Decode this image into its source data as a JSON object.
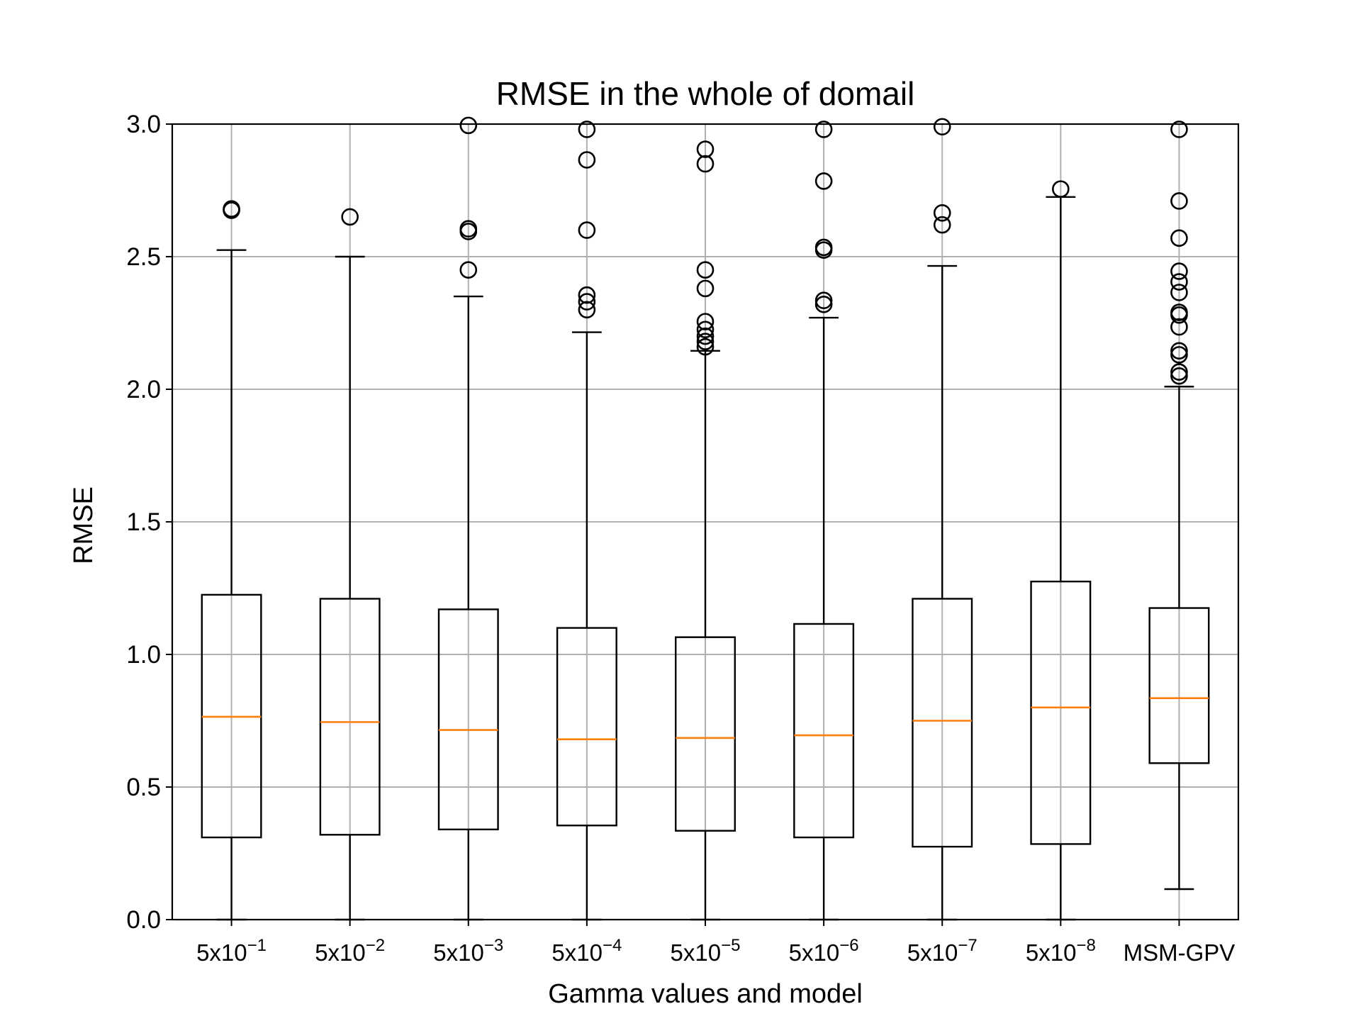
{
  "chart_data": {
    "type": "box",
    "title": "RMSE in the whole of domail",
    "xlabel": "Gamma values and model",
    "ylabel": "RMSE",
    "ylim": [
      0.0,
      3.0
    ],
    "yticks": [
      "0.0",
      "0.5",
      "1.0",
      "1.5",
      "2.0",
      "2.5",
      "3.0"
    ],
    "grid": true,
    "colors": {
      "box": "#000000",
      "median": "#ff7f0e",
      "grid": "#b0b0b0",
      "outlier": "#000000"
    },
    "categories": [
      {
        "base": "5x10",
        "exp": "−1"
      },
      {
        "base": "5x10",
        "exp": "−2"
      },
      {
        "base": "5x10",
        "exp": "−3"
      },
      {
        "base": "5x10",
        "exp": "−4"
      },
      {
        "base": "5x10",
        "exp": "−5"
      },
      {
        "base": "5x10",
        "exp": "−6"
      },
      {
        "base": "5x10",
        "exp": "−7"
      },
      {
        "base": "5x10",
        "exp": "−8"
      },
      {
        "base": "MSM-GPV",
        "exp": ""
      }
    ],
    "boxes": [
      {
        "whislo": 0.0,
        "q1": 0.31,
        "med": 0.765,
        "q3": 1.225,
        "whishi": 2.525,
        "fliers": [
          2.675,
          2.68
        ]
      },
      {
        "whislo": 0.0,
        "q1": 0.32,
        "med": 0.745,
        "q3": 1.21,
        "whishi": 2.5,
        "fliers": [
          2.65
        ]
      },
      {
        "whislo": 0.0,
        "q1": 0.34,
        "med": 0.715,
        "q3": 1.17,
        "whishi": 2.35,
        "fliers": [
          2.45,
          2.595,
          2.605,
          2.995
        ]
      },
      {
        "whislo": 0.0,
        "q1": 0.355,
        "med": 0.68,
        "q3": 1.1,
        "whishi": 2.215,
        "fliers": [
          2.3,
          2.33,
          2.355,
          2.6,
          2.865,
          2.98
        ]
      },
      {
        "whislo": 0.0,
        "q1": 0.335,
        "med": 0.685,
        "q3": 1.065,
        "whishi": 2.145,
        "fliers": [
          2.16,
          2.18,
          2.2,
          2.225,
          2.255,
          2.38,
          2.45,
          2.85,
          2.905
        ]
      },
      {
        "whislo": 0.0,
        "q1": 0.31,
        "med": 0.695,
        "q3": 1.115,
        "whishi": 2.27,
        "fliers": [
          2.32,
          2.335,
          2.525,
          2.535,
          2.785,
          2.98
        ]
      },
      {
        "whislo": 0.0,
        "q1": 0.275,
        "med": 0.75,
        "q3": 1.21,
        "whishi": 2.465,
        "fliers": [
          2.62,
          2.665,
          2.99
        ]
      },
      {
        "whislo": 0.0,
        "q1": 0.285,
        "med": 0.8,
        "q3": 1.275,
        "whishi": 2.725,
        "fliers": [
          2.755
        ]
      },
      {
        "whislo": 0.115,
        "q1": 0.59,
        "med": 0.835,
        "q3": 1.175,
        "whishi": 2.01,
        "fliers": [
          2.05,
          2.065,
          2.13,
          2.145,
          2.235,
          2.28,
          2.29,
          2.365,
          2.405,
          2.445,
          2.57,
          2.71,
          2.98
        ]
      }
    ]
  }
}
